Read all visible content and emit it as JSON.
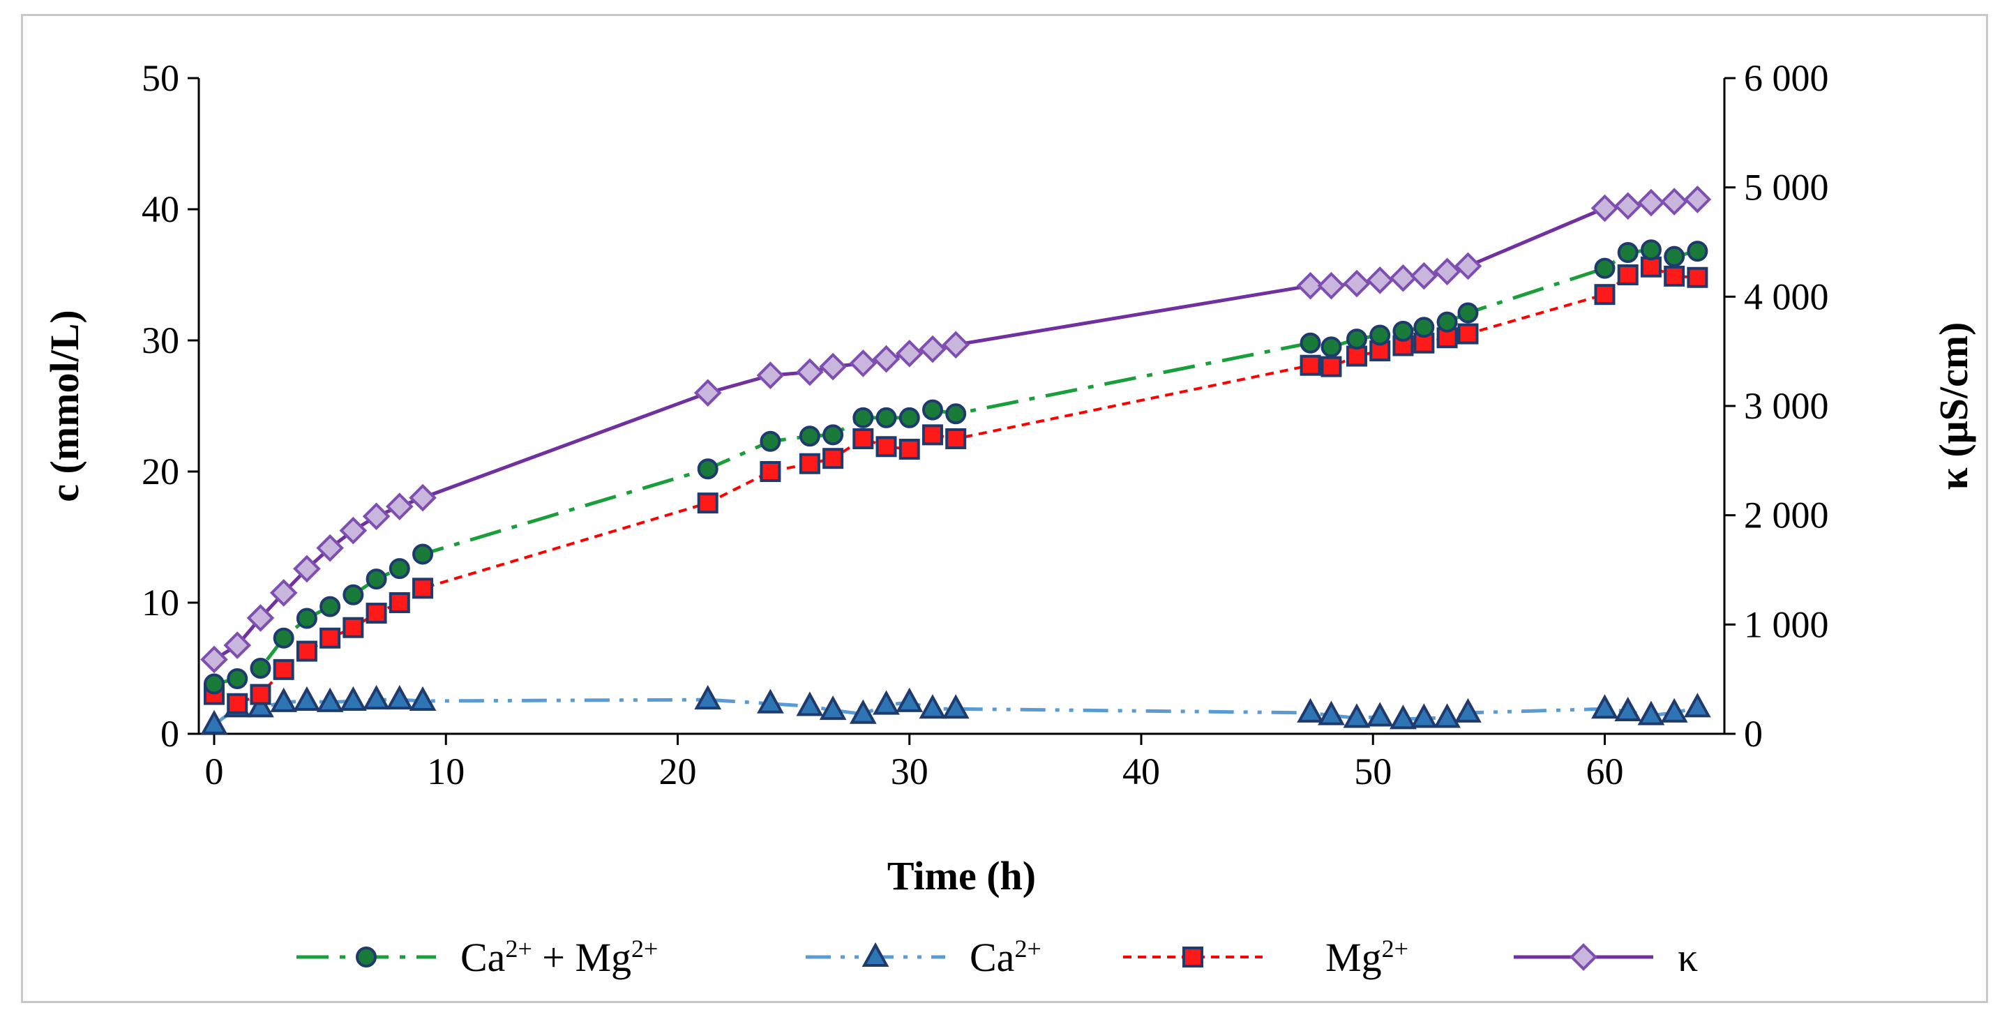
{
  "chart_data": {
    "type": "line",
    "title": "",
    "xlabel": "Time (h)",
    "ylabel": "c (mmol/L)",
    "y2label": "κ (μS/cm)",
    "xlim": [
      0,
      64.5
    ],
    "ylim": [
      0,
      50
    ],
    "y2lim": [
      0,
      6000
    ],
    "xticks": [
      0,
      10,
      20,
      30,
      40,
      50,
      60
    ],
    "yticks": [
      0,
      10,
      20,
      30,
      40,
      50
    ],
    "y2ticks": [
      0,
      1000,
      2000,
      3000,
      4000,
      5000,
      6000
    ],
    "y2ticklabels": [
      "0",
      "1 000",
      "2 000",
      "3 000",
      "4 000",
      "5 000",
      "6 000"
    ],
    "legend_position": "bottom",
    "series": [
      {
        "id": "camg",
        "name": "Ca²⁺ + Mg²⁺",
        "legend_main1": "Ca",
        "legend_sup1": "2+",
        "legend_mid": " + Mg",
        "legend_sup2": "2+",
        "axis": "left",
        "color": "#1a9e3a",
        "marker": "circle",
        "marker_fill": "#1a7a3a",
        "marker_edge": "#1f3b6e",
        "dash": "long-dash-dot",
        "x": [
          0,
          1,
          2,
          3,
          4,
          5,
          6,
          7,
          8,
          9,
          21.3,
          24,
          25.7,
          26.7,
          28,
          29,
          30,
          31,
          32,
          47.3,
          48.2,
          49.3,
          50.3,
          51.3,
          52.2,
          53.2,
          54.1,
          60,
          61,
          62,
          63,
          64
        ],
        "y": [
          3.8,
          4.2,
          5.0,
          7.3,
          8.8,
          9.7,
          10.6,
          11.8,
          12.6,
          13.7,
          20.2,
          22.3,
          22.7,
          22.8,
          24.1,
          24.1,
          24.1,
          24.7,
          24.4,
          29.8,
          29.5,
          30.1,
          30.4,
          30.7,
          31.0,
          31.4,
          32.1,
          35.5,
          36.7,
          36.9,
          36.4,
          36.8
        ]
      },
      {
        "id": "ca",
        "name": "Ca²⁺",
        "legend_main1": "Ca",
        "legend_sup1": "2+",
        "legend_mid": "",
        "legend_sup2": "",
        "axis": "left",
        "color": "#5b9bd5",
        "marker": "triangle",
        "marker_fill": "#2e75b6",
        "marker_edge": "#1f3b6e",
        "dash": "long-dash-dot-dot",
        "x": [
          0,
          1,
          2,
          3,
          4,
          5,
          6,
          7,
          8,
          9,
          21.3,
          24,
          25.7,
          26.7,
          28,
          29,
          30,
          31,
          32,
          47.3,
          48.2,
          49.3,
          50.3,
          51.3,
          52.2,
          53.2,
          54.1,
          60,
          61,
          62,
          63,
          64
        ],
        "y": [
          0.7,
          2.0,
          2.0,
          2.4,
          2.5,
          2.4,
          2.5,
          2.6,
          2.6,
          2.5,
          2.6,
          2.3,
          2.1,
          1.8,
          1.5,
          2.2,
          2.4,
          1.9,
          1.9,
          1.6,
          1.4,
          1.2,
          1.3,
          1.1,
          1.2,
          1.2,
          1.6,
          1.9,
          1.7,
          1.4,
          1.6,
          2.0
        ]
      },
      {
        "id": "mg",
        "name": "Mg²⁺",
        "legend_main1": "Mg",
        "legend_sup1": "2+",
        "legend_mid": "",
        "legend_sup2": "",
        "axis": "left",
        "color": "#ff0000",
        "marker": "square",
        "marker_fill": "#ff1a1a",
        "marker_edge": "#1f3b6e",
        "dash": "short-dash",
        "x": [
          0,
          1,
          2,
          3,
          4,
          5,
          6,
          7,
          8,
          9,
          21.3,
          24,
          25.7,
          26.7,
          28,
          29,
          30,
          31,
          32,
          47.3,
          48.2,
          49.3,
          50.3,
          51.3,
          52.2,
          53.2,
          54.1,
          60,
          61,
          62,
          63,
          64
        ],
        "y": [
          3.0,
          2.3,
          3.0,
          4.9,
          6.3,
          7.3,
          8.1,
          9.2,
          10.0,
          11.1,
          17.6,
          20.0,
          20.6,
          21.0,
          22.5,
          21.9,
          21.7,
          22.8,
          22.5,
          28.1,
          28.0,
          28.8,
          29.2,
          29.6,
          29.8,
          30.2,
          30.5,
          33.5,
          35.0,
          35.6,
          34.9,
          34.8
        ]
      },
      {
        "id": "kappa",
        "name": "κ",
        "legend_main1": "κ",
        "legend_sup1": "",
        "legend_mid": "",
        "legend_sup2": "",
        "axis": "right",
        "color": "#7030a0",
        "marker": "diamond",
        "marker_fill": "#c8b6dc",
        "marker_edge": "#7e4fb0",
        "dash": "solid",
        "x": [
          0,
          1,
          2,
          3,
          4,
          5,
          6,
          7,
          8,
          9,
          21.3,
          24,
          25.7,
          26.7,
          28,
          29,
          30,
          31,
          32,
          47.3,
          48.2,
          49.3,
          50.3,
          51.3,
          52.2,
          53.2,
          54.1,
          60,
          61,
          62,
          63,
          64
        ],
        "y": [
          680,
          810,
          1060,
          1290,
          1510,
          1700,
          1860,
          1990,
          2080,
          2160,
          3120,
          3280,
          3310,
          3360,
          3390,
          3430,
          3480,
          3520,
          3560,
          4100,
          4100,
          4120,
          4150,
          4170,
          4190,
          4230,
          4280,
          4810,
          4830,
          4860,
          4870,
          4890
        ]
      }
    ]
  }
}
